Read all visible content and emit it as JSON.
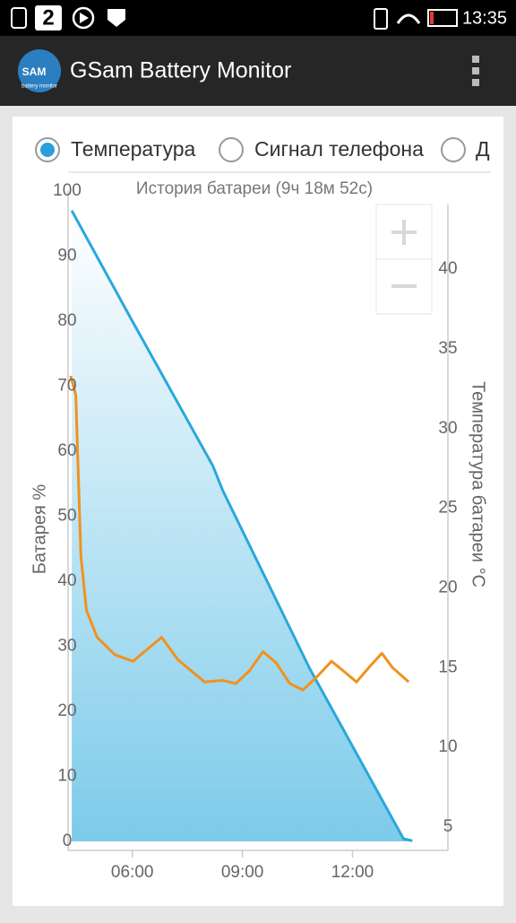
{
  "status_bar": {
    "badge": "2",
    "time": "13:35"
  },
  "app_bar": {
    "title": "GSam Battery Monitor",
    "logo_text": "SAM",
    "logo_subtitle": "battery monitor"
  },
  "options": [
    "Температура",
    "Сигнал телефона",
    "Д"
  ],
  "chart_data": {
    "type": "line",
    "title": "История батареи (9ч 18м 52с)",
    "y_label": "Батарея %",
    "y2_label": "Температура батареи °C",
    "xlim": [
      4.25,
      14.6
    ],
    "xticks": [
      {
        "value": 6,
        "label": "06:00"
      },
      {
        "value": 9,
        "label": "09:00"
      },
      {
        "value": 12,
        "label": "12:00"
      }
    ],
    "ylim": [
      0,
      100
    ],
    "yticks": [
      0,
      10,
      20,
      30,
      40,
      50,
      60,
      70,
      80,
      90,
      100
    ],
    "y2lim": [
      4.1,
      44.9
    ],
    "y2ticks": [
      5,
      10,
      15,
      20,
      25,
      30,
      35,
      40
    ],
    "series": [
      {
        "name": "Батарея",
        "color": "#2aa7dc",
        "fill": true,
        "x": [
          4.35,
          6.0,
          8.2,
          8.46,
          10.83,
          13.39,
          13.63
        ],
        "values": [
          97,
          80,
          57.7,
          54,
          26.6,
          0.4,
          0.1
        ]
      },
      {
        "name": "Температура",
        "color": "#f0921e",
        "axis": "y2",
        "x": [
          4.32,
          4.46,
          4.6,
          4.75,
          5.04,
          5.53,
          6.02,
          6.38,
          6.8,
          7.24,
          7.97,
          8.45,
          8.82,
          9.19,
          9.56,
          9.92,
          10.29,
          10.65,
          11.02,
          11.43,
          11.75,
          12.11,
          12.48,
          12.8,
          13.09,
          13.53
        ],
        "values": [
          33.3,
          32.1,
          22.0,
          18.6,
          16.9,
          15.8,
          15.4,
          16.1,
          16.9,
          15.5,
          14.1,
          14.2,
          14.0,
          14.8,
          16.0,
          15.3,
          14.0,
          13.6,
          14.4,
          15.4,
          14.8,
          14.1,
          15.1,
          15.9,
          15.0,
          14.1
        ]
      }
    ]
  }
}
